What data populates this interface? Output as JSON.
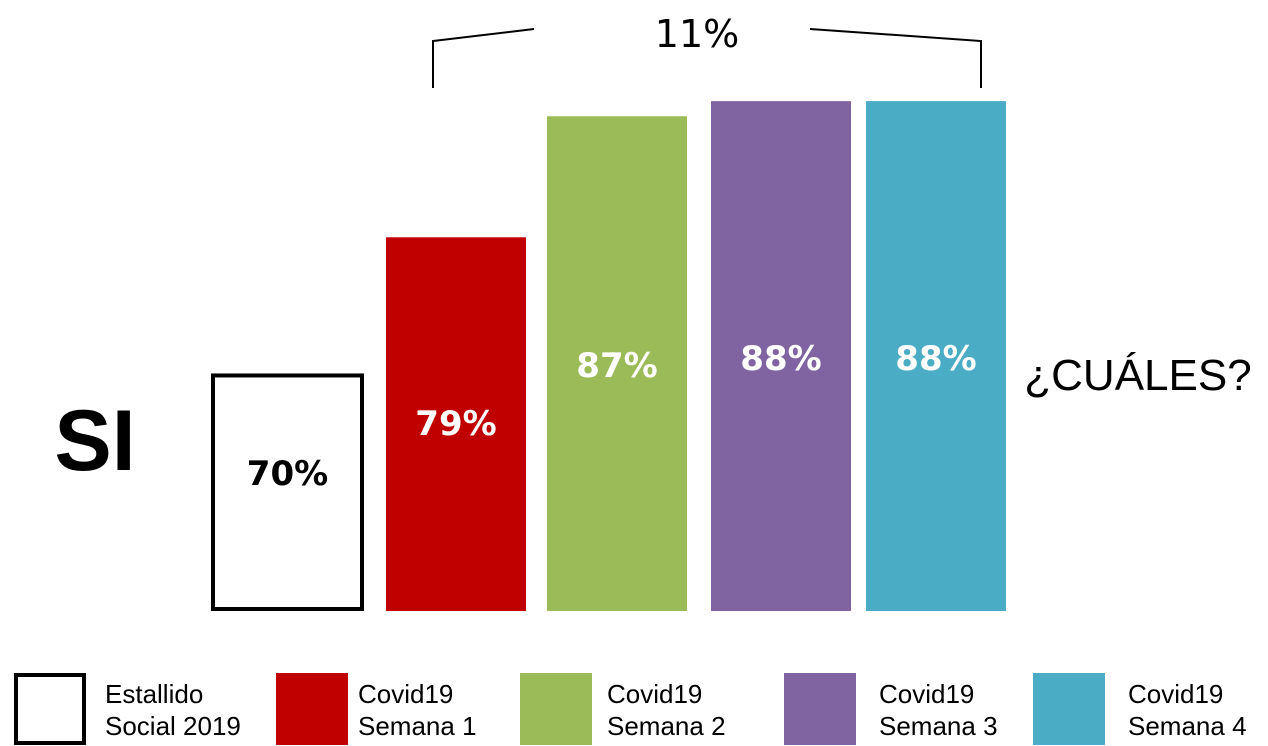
{
  "chart_data": {
    "type": "bar",
    "row_label": "SI",
    "categories": [
      "Estallido Social 2019",
      "Covid19 Semana 1",
      "Covid19 Semana 2",
      "Covid19 Semana 3",
      "Covid19 Semana 4"
    ],
    "values": [
      70,
      79,
      87,
      88,
      88
    ],
    "value_labels": [
      "70%",
      "79%",
      "87%",
      "88%",
      "88%"
    ],
    "colors": [
      "#ffffff",
      "#c00000",
      "#9bbb59",
      "#8064a2",
      "#4bacc6"
    ],
    "label_colors": [
      "#000000",
      "#ffffff",
      "#ffffff",
      "#ffffff",
      "#ffffff"
    ],
    "bracket_annotation": "11%",
    "side_annotation": "¿CUÁLES?",
    "legend": [
      {
        "line1": "Estallido",
        "line2": "Social 2019",
        "color": "#ffffff",
        "outlined": true
      },
      {
        "line1": "Covid19",
        "line2": "Semana 1",
        "color": "#c00000",
        "outlined": false
      },
      {
        "line1": "Covid19",
        "line2": "Semana 2",
        "color": "#9bbb59",
        "outlined": false
      },
      {
        "line1": "Covid19",
        "line2": "Semana 3",
        "color": "#8064a2",
        "outlined": false
      },
      {
        "line1": "Covid19",
        "line2": "Semana 4",
        "color": "#4bacc6",
        "outlined": false
      }
    ]
  }
}
